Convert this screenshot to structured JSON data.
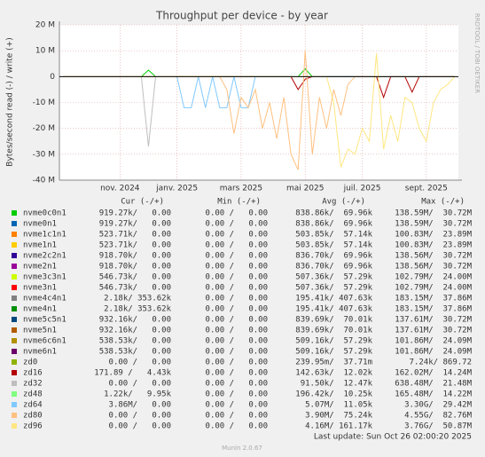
{
  "chart_data": {
    "type": "line",
    "title": "Throughput per device - by year",
    "y_label": "Bytes/second read (-) / write (+)",
    "side_note": "RRDTOOL / TOBI OETIKER",
    "ylim": [
      -40,
      20
    ],
    "yticks": [
      {
        "value": 20,
        "label": "20 M"
      },
      {
        "value": 10,
        "label": "10 M"
      },
      0,
      {
        "value": -10,
        "label": "-10 M"
      },
      {
        "value": -20,
        "label": "-20 M"
      },
      {
        "value": -30,
        "label": "-30 M"
      },
      {
        "value": -40,
        "label": "-40 M"
      }
    ],
    "grid": true,
    "categories": [
      null,
      null,
      null,
      null,
      null,
      null,
      null,
      null,
      "nov. 2024",
      null,
      null,
      null,
      null,
      null,
      null,
      null,
      "janv. 2025",
      null,
      null,
      null,
      null,
      null,
      null,
      null,
      null,
      "mars 2025",
      null,
      null,
      null,
      null,
      null,
      null,
      null,
      null,
      "mai 2025",
      null,
      null,
      null,
      null,
      null,
      null,
      null,
      "juil. 2025",
      null,
      null,
      null,
      null,
      null,
      null,
      null,
      null,
      "sept. 2025",
      null,
      null,
      null,
      null
    ],
    "columns": [
      "Cur (-/+)",
      "Min (-/+)",
      "Avg (-/+)",
      "Max (-/+)"
    ],
    "series": [
      {
        "name": "nvme0c0n1",
        "color": "#00cc00",
        "cur": "919.27k/   0.00",
        "min": "0.00 /   0.00",
        "avg": "838.86k/  69.96k",
        "max": "138.59M/  30.72M",
        "values": [
          0,
          0,
          0,
          0,
          0,
          0,
          0,
          0,
          0,
          0,
          0,
          0,
          2.5,
          0,
          0,
          0,
          0,
          0,
          0,
          0,
          0,
          0,
          0,
          0,
          0,
          0,
          0,
          0,
          0,
          0,
          0,
          0,
          0,
          0,
          3,
          0,
          0,
          0,
          0,
          0,
          0,
          0,
          0,
          0,
          0,
          0,
          0,
          0,
          0,
          0,
          0,
          0,
          0,
          0,
          0,
          0
        ]
      },
      {
        "name": "nvme0n1",
        "color": "#0066b3",
        "cur": "919.27k/   0.00",
        "min": "0.00 /   0.00",
        "avg": "838.86k/  69.96k",
        "max": "138.59M/  30.72M"
      },
      {
        "name": "nvme1c1n1",
        "color": "#ff8000",
        "cur": "523.71k/   0.00",
        "min": "0.00 /   0.00",
        "avg": "503.85k/  57.14k",
        "max": "100.83M/  23.89M"
      },
      {
        "name": "nvme1n1",
        "color": "#ffcc00",
        "cur": "523.71k/   0.00",
        "min": "0.00 /   0.00",
        "avg": "503.85k/  57.14k",
        "max": "100.83M/  23.89M"
      },
      {
        "name": "nvme2c2n1",
        "color": "#330099",
        "cur": "918.70k/   0.00",
        "min": "0.00 /   0.00",
        "avg": "836.70k/  69.96k",
        "max": "138.56M/  30.72M"
      },
      {
        "name": "nvme2n1",
        "color": "#990099",
        "cur": "918.70k/   0.00",
        "min": "0.00 /   0.00",
        "avg": "836.70k/  69.96k",
        "max": "138.56M/  30.72M"
      },
      {
        "name": "nvme3c3n1",
        "color": "#ccff00",
        "cur": "546.73k/   0.00",
        "min": "0.00 /   0.00",
        "avg": "507.36k/  57.29k",
        "max": "102.79M/  24.00M"
      },
      {
        "name": "nvme3n1",
        "color": "#ff0000",
        "cur": "546.73k/   0.00",
        "min": "0.00 /   0.00",
        "avg": "507.36k/  57.29k",
        "max": "102.79M/  24.00M"
      },
      {
        "name": "nvme4c4n1",
        "color": "#808080",
        "cur": "2.18k/ 353.62k",
        "min": "0.00 /   0.00",
        "avg": "195.41k/ 407.63k",
        "max": "183.15M/  37.86M"
      },
      {
        "name": "nvme4n1",
        "color": "#008f00",
        "cur": "2.18k/ 353.62k",
        "min": "0.00 /   0.00",
        "avg": "195.41k/ 407.63k",
        "max": "183.15M/  37.86M"
      },
      {
        "name": "nvme5c5n1",
        "color": "#00487d",
        "cur": "932.16k/   0.00",
        "min": "0.00 /   0.00",
        "avg": "839.69k/  70.01k",
        "max": "137.61M/  30.72M"
      },
      {
        "name": "nvme5n1",
        "color": "#b35a00",
        "cur": "932.16k/   0.00",
        "min": "0.00 /   0.00",
        "avg": "839.69k/  70.01k",
        "max": "137.61M/  30.72M"
      },
      {
        "name": "nvme6c6n1",
        "color": "#b38f00",
        "cur": "538.53k/   0.00",
        "min": "0.00 /   0.00",
        "avg": "509.16k/  57.29k",
        "max": "101.86M/  24.09M"
      },
      {
        "name": "nvme6n1",
        "color": "#6b006b",
        "cur": "538.53k/   0.00",
        "min": "0.00 /   0.00",
        "avg": "509.16k/  57.29k",
        "max": "101.86M/  24.09M"
      },
      {
        "name": "zd0",
        "color": "#8fb300",
        "cur": "0.00 /   0.00",
        "min": "0.00 /   0.00",
        "avg": "239.95m/  37.71m",
        "max": "7.24k/ 869.72"
      },
      {
        "name": "zd16",
        "color": "#b30000",
        "cur": "171.89 /   4.43k",
        "min": "0.00 /   0.00",
        "avg": "142.63k/  12.02k",
        "max": "162.02M/  14.24M",
        "values": [
          0,
          0,
          0,
          0,
          0,
          0,
          0,
          0,
          0,
          0,
          0,
          0,
          0,
          0,
          0,
          0,
          0,
          0,
          0,
          0,
          0,
          0,
          0,
          0,
          0,
          0,
          0,
          0,
          0,
          0,
          0,
          0,
          0,
          -5,
          -1,
          0,
          0,
          0,
          0,
          0,
          0,
          0,
          0,
          0,
          0,
          -8,
          0,
          0,
          0,
          -6,
          0,
          0,
          0,
          0,
          0,
          0
        ]
      },
      {
        "name": "zd32",
        "color": "#bebebe",
        "cur": "0.00 /   0.00",
        "min": "0.00 /   0.00",
        "avg": "91.50k/  12.47k",
        "max": "638.48M/  21.48M",
        "values": [
          0,
          0,
          0,
          0,
          0,
          0,
          0,
          0,
          0,
          0,
          0,
          0,
          -27,
          0,
          0,
          0,
          0,
          0,
          0,
          0,
          0,
          0,
          0,
          0,
          0,
          0,
          0,
          0,
          0,
          0,
          0,
          0,
          0,
          0,
          0,
          0,
          0,
          0,
          0,
          0,
          0,
          0,
          0,
          0,
          0,
          0,
          0,
          0,
          0,
          0,
          0,
          0,
          0,
          0,
          0,
          0
        ]
      },
      {
        "name": "zd48",
        "color": "#80ff80",
        "cur": "1.22k/   9.95k",
        "min": "0.00 /   0.00",
        "avg": "196.42k/  10.25k",
        "max": "165.48M/  14.22M"
      },
      {
        "name": "zd64",
        "color": "#80c9ff",
        "cur": "3.86M/   0.00",
        "min": "0.00 /   0.00",
        "avg": "5.07M/  11.05k",
        "max": "3.30G/  29.42M",
        "values": [
          0,
          0,
          0,
          0,
          0,
          0,
          0,
          0,
          0,
          0,
          0,
          0,
          0,
          0,
          0,
          0,
          0,
          -12,
          -12,
          0,
          -12,
          0,
          -12,
          -12,
          0,
          -12,
          -12,
          0,
          0,
          0,
          0,
          0,
          0,
          0,
          0,
          0,
          0,
          0,
          0,
          0,
          0,
          0,
          0,
          0,
          0,
          0,
          0,
          0,
          0,
          0,
          0,
          0,
          0,
          0,
          0,
          0
        ]
      },
      {
        "name": "zd80",
        "color": "#ffc080",
        "cur": "0.00 /   0.00",
        "min": "0.00 /   0.00",
        "avg": "3.90M/  75.24k",
        "max": "4.55G/  82.76M",
        "values": [
          0,
          0,
          0,
          0,
          0,
          0,
          0,
          0,
          0,
          0,
          0,
          0,
          0,
          0,
          0,
          0,
          0,
          0,
          0,
          0,
          0,
          0,
          0,
          -5,
          -22,
          -8,
          -12,
          -5,
          -20,
          -10,
          -24,
          -8,
          -30,
          -36,
          10,
          -30,
          -8,
          -20,
          -5,
          -15,
          -3,
          0,
          0,
          0,
          0,
          0,
          0,
          0,
          0,
          0,
          0,
          0,
          0,
          0,
          0,
          0
        ]
      },
      {
        "name": "zd96",
        "color": "#ffe680",
        "cur": "0.00 /   0.00",
        "min": "0.00 /   0.00",
        "avg": "4.16M/ 161.17k",
        "max": "3.76G/  50.87M",
        "values": [
          0,
          0,
          0,
          0,
          0,
          0,
          0,
          0,
          0,
          0,
          0,
          0,
          0,
          0,
          0,
          0,
          0,
          0,
          0,
          0,
          0,
          0,
          0,
          0,
          0,
          0,
          0,
          0,
          0,
          0,
          0,
          0,
          0,
          0,
          0,
          0,
          0,
          0,
          -10,
          -35,
          -28,
          -30,
          -20,
          -25,
          9,
          -28,
          -15,
          -25,
          -8,
          -10,
          -20,
          -25,
          -10,
          -5,
          -3,
          0
        ]
      }
    ],
    "last_update": "Last update: Sun Oct 26 02:00:20 2025",
    "footer": "Munin 2.0.67"
  }
}
